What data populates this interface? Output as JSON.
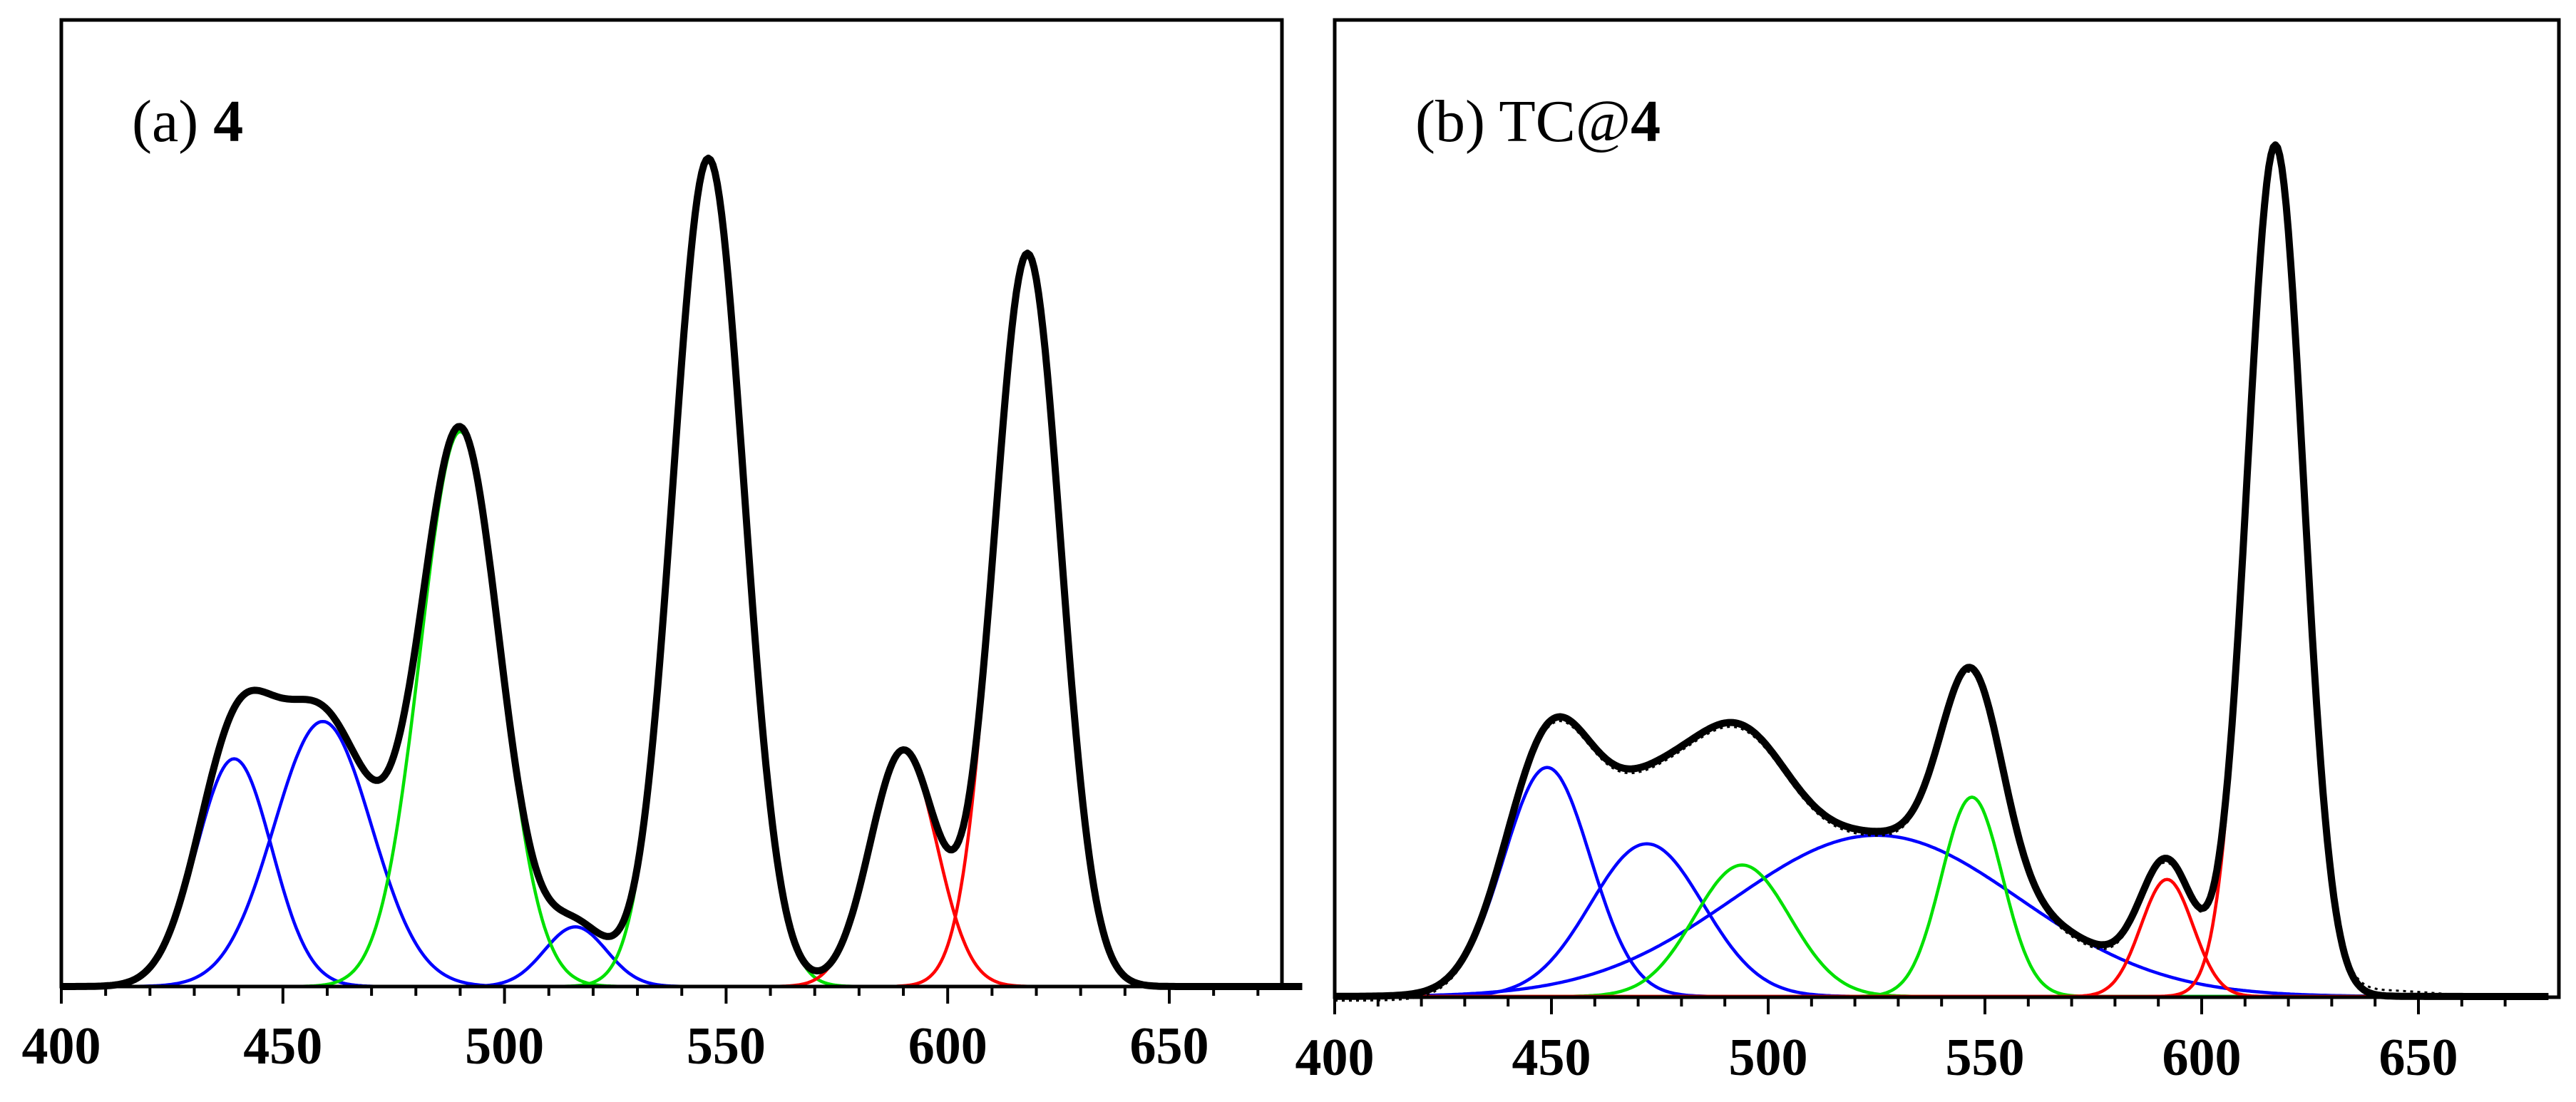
{
  "figure": {
    "description_panels": 2
  },
  "chart_data": [
    {
      "type": "line",
      "panel": "a",
      "title": "(a) 4",
      "title_parts": {
        "prefix": "(a) ",
        "bold": "4"
      },
      "xlabel": "",
      "ylabel": "",
      "xlim": [
        400,
        680
      ],
      "ylim": [
        0,
        1.0
      ],
      "xticks": [
        400,
        450,
        500,
        550,
        600,
        650
      ],
      "xtick_labels": [
        "400",
        "450",
        "500",
        "550",
        "600",
        "650"
      ],
      "grid": false,
      "legend": "none",
      "components": [
        {
          "name": "blue peak 1",
          "color": "#0000ff",
          "center": 439,
          "height": 0.275,
          "sigma": 8.5
        },
        {
          "name": "blue peak 2",
          "color": "#0000ff",
          "center": 459,
          "height": 0.32,
          "sigma": 11
        },
        {
          "name": "blue peak 3",
          "color": "#0000ff",
          "center": 516,
          "height": 0.072,
          "sigma": 7
        },
        {
          "name": "green peak 1",
          "color": "#00e000",
          "center": 490,
          "height": 0.67,
          "sigma": 9
        },
        {
          "name": "green peak 2",
          "color": "#00e000",
          "center": 546,
          "height": 1.0,
          "sigma": 8
        },
        {
          "name": "red peak 1",
          "color": "#ff0000",
          "center": 590,
          "height": 0.285,
          "sigma": 7.5
        },
        {
          "name": "red peak 2",
          "color": "#ff0000",
          "center": 618,
          "height": 0.885,
          "sigma": 7.5
        }
      ],
      "series": [
        {
          "name": "sum fit",
          "color": "#000000",
          "style": "thick solid",
          "source": "sum of components"
        }
      ]
    },
    {
      "type": "line",
      "panel": "b",
      "title": "(b) TC@4",
      "title_parts": {
        "prefix": "(b) TC@",
        "bold": "4"
      },
      "xlabel": "",
      "ylabel": "",
      "xlim": [
        400,
        680
      ],
      "ylim": [
        0,
        1.0
      ],
      "xticks": [
        400,
        450,
        500,
        550,
        600,
        650
      ],
      "xtick_labels": [
        "400",
        "450",
        "500",
        "550",
        "600",
        "650"
      ],
      "grid": false,
      "legend": "none",
      "components": [
        {
          "name": "blue peak 1",
          "color": "#0000ff",
          "center": 449,
          "height": 0.27,
          "sigma": 10
        },
        {
          "name": "blue peak 2",
          "color": "#0000ff",
          "center": 472,
          "height": 0.18,
          "sigma": 13
        },
        {
          "name": "blue broad",
          "color": "#0000ff",
          "center": 525,
          "height": 0.19,
          "sigma": 33
        },
        {
          "name": "green peak 1",
          "color": "#00e000",
          "center": 494,
          "height": 0.155,
          "sigma": 11
        },
        {
          "name": "green peak 2",
          "color": "#00e000",
          "center": 547,
          "height": 0.235,
          "sigma": 7
        },
        {
          "name": "red peak 1",
          "color": "#ff0000",
          "center": 592,
          "height": 0.138,
          "sigma": 6
        },
        {
          "name": "red peak 2",
          "color": "#ff0000",
          "center": 617,
          "height": 1.0,
          "sigma": 6.5
        }
      ],
      "series": [
        {
          "name": "experimental",
          "color": "#000000",
          "style": "thin dotted",
          "source": "measured"
        },
        {
          "name": "sum fit",
          "color": "#000000",
          "style": "thick solid",
          "source": "sum of components"
        }
      ]
    }
  ]
}
